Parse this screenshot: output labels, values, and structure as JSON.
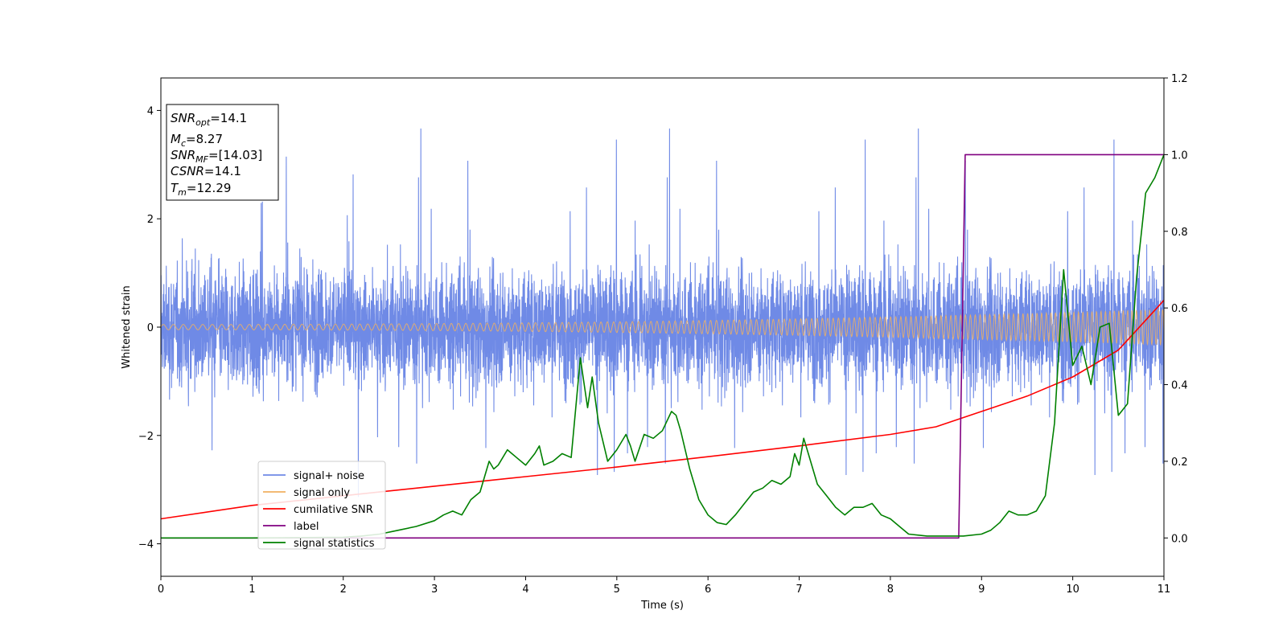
{
  "chart_data": {
    "type": "line",
    "xlabel": "Time (s)",
    "ylabel": "Whitened strain",
    "xlim": [
      0,
      11
    ],
    "ylim_left": [
      -4.6,
      4.6
    ],
    "ylim_right": [
      -0.1,
      1.2
    ],
    "x_ticks": [
      0,
      1,
      2,
      3,
      4,
      5,
      6,
      7,
      8,
      9,
      10,
      11
    ],
    "y_ticks_left": [
      -4,
      -2,
      0,
      2,
      4
    ],
    "y_ticks_right": [
      0.0,
      0.2,
      0.4,
      0.6,
      0.8,
      1.0,
      1.2
    ],
    "grid": false,
    "legend_position": "lower-left",
    "info_box": {
      "snr_opt": {
        "name": "SNR",
        "sub": "opt",
        "value": "=14.1"
      },
      "mc": {
        "name": "M",
        "sub": "c",
        "value": "=8.27"
      },
      "snr_mf": {
        "name": "SNR",
        "sub": "MF",
        "value": "=[14.03]"
      },
      "csnr": {
        "name": "CSNR",
        "sub": "",
        "value": "=14.1"
      },
      "tm": {
        "name": "T",
        "sub": "m",
        "value": "=12.29"
      }
    },
    "series": [
      {
        "name": "signal+ noise",
        "axis": "left",
        "color": "#6f8ae6",
        "description_values": {
          "typical_min": -2.3,
          "typical_max": 2.3,
          "peak_max": 4.2,
          "peak_min": -4.1
        }
      },
      {
        "name": "signal only",
        "axis": "left",
        "color": "#f0b060",
        "amplitude_start": 0.05,
        "amplitude_end": 0.33
      },
      {
        "name": "cumilative SNR",
        "axis": "right",
        "color": "#ff0000",
        "x": [
          0,
          1,
          2,
          3,
          4,
          5,
          6,
          7,
          8,
          8.5,
          9,
          9.5,
          10,
          10.5,
          11
        ],
        "y": [
          0.05,
          0.085,
          0.11,
          0.135,
          0.16,
          0.185,
          0.212,
          0.24,
          0.27,
          0.29,
          0.33,
          0.37,
          0.42,
          0.49,
          0.62
        ]
      },
      {
        "name": "label",
        "axis": "right",
        "color": "#800080",
        "x": [
          0,
          8.75,
          8.82,
          11
        ],
        "y": [
          0,
          0,
          1,
          1
        ]
      },
      {
        "name": "signal statistics",
        "axis": "right",
        "color": "#008000",
        "x": [
          0,
          1,
          2,
          2.2,
          2.4,
          2.6,
          2.8,
          3.0,
          3.1,
          3.2,
          3.3,
          3.4,
          3.5,
          3.6,
          3.65,
          3.7,
          3.8,
          3.9,
          4.0,
          4.1,
          4.15,
          4.2,
          4.3,
          4.4,
          4.5,
          4.6,
          4.63,
          4.68,
          4.73,
          4.8,
          4.9,
          5.0,
          5.1,
          5.15,
          5.2,
          5.3,
          5.4,
          5.5,
          5.6,
          5.65,
          5.7,
          5.8,
          5.85,
          5.9,
          6.0,
          6.1,
          6.2,
          6.3,
          6.4,
          6.5,
          6.6,
          6.7,
          6.8,
          6.9,
          6.95,
          7.0,
          7.05,
          7.1,
          7.2,
          7.3,
          7.4,
          7.5,
          7.6,
          7.7,
          7.8,
          7.9,
          8.0,
          8.1,
          8.2,
          8.4,
          8.6,
          8.8,
          9.0,
          9.1,
          9.2,
          9.3,
          9.4,
          9.5,
          9.6,
          9.7,
          9.8,
          9.9,
          10.0,
          10.1,
          10.2,
          10.3,
          10.4,
          10.5,
          10.6,
          10.7,
          10.8,
          10.9,
          11.0
        ],
        "y": [
          0.0,
          0.0,
          0.002,
          0.005,
          0.01,
          0.02,
          0.03,
          0.045,
          0.06,
          0.07,
          0.06,
          0.1,
          0.12,
          0.2,
          0.18,
          0.19,
          0.23,
          0.21,
          0.19,
          0.22,
          0.24,
          0.19,
          0.2,
          0.22,
          0.21,
          0.47,
          0.42,
          0.34,
          0.42,
          0.3,
          0.2,
          0.23,
          0.27,
          0.24,
          0.2,
          0.27,
          0.26,
          0.28,
          0.33,
          0.32,
          0.28,
          0.18,
          0.14,
          0.1,
          0.06,
          0.04,
          0.035,
          0.06,
          0.09,
          0.12,
          0.13,
          0.15,
          0.14,
          0.16,
          0.22,
          0.19,
          0.26,
          0.22,
          0.14,
          0.11,
          0.08,
          0.06,
          0.08,
          0.08,
          0.09,
          0.06,
          0.05,
          0.03,
          0.01,
          0.005,
          0.005,
          0.005,
          0.01,
          0.02,
          0.04,
          0.07,
          0.06,
          0.06,
          0.07,
          0.11,
          0.3,
          0.7,
          0.45,
          0.5,
          0.4,
          0.55,
          0.56,
          0.32,
          0.35,
          0.68,
          0.9,
          0.94,
          1.0
        ]
      }
    ]
  }
}
